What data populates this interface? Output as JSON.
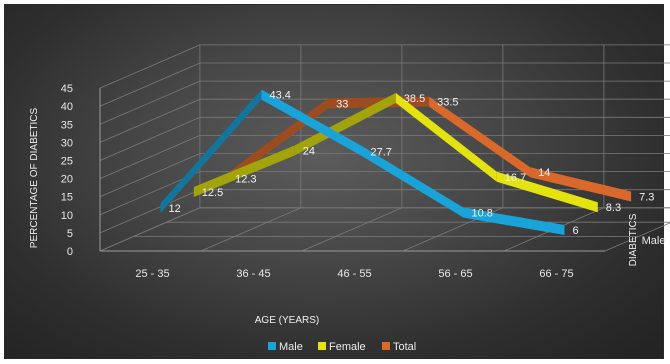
{
  "chart_data": {
    "type": "line",
    "style": "3d-line",
    "categories": [
      "25 - 35",
      "36 - 45",
      "46 - 55",
      "56 - 65",
      "66 - 75"
    ],
    "series": [
      {
        "name": "Male",
        "values": [
          12,
          43.4,
          27.7,
          10.8,
          6
        ],
        "color": "#1aa3d9"
      },
      {
        "name": "Female",
        "values": [
          12.5,
          24,
          38.5,
          16.7,
          8.3
        ],
        "color": "#e3e30f"
      },
      {
        "name": "Total",
        "values": [
          12.3,
          33,
          33.5,
          14,
          7.3
        ],
        "color": "#d9692a"
      }
    ],
    "yticks": [
      "0",
      "5",
      "10",
      "15",
      "20",
      "25",
      "30",
      "35",
      "40",
      "45"
    ],
    "ylim": [
      0,
      45
    ],
    "xlabel": "AGE (YEARS)",
    "ylabel": "PERCENTAGE OF DIABETICS",
    "zlabel": "DIABETICS",
    "legend": [
      "Male",
      "Female",
      "Total"
    ],
    "legend_position": "bottom",
    "grid": true
  }
}
